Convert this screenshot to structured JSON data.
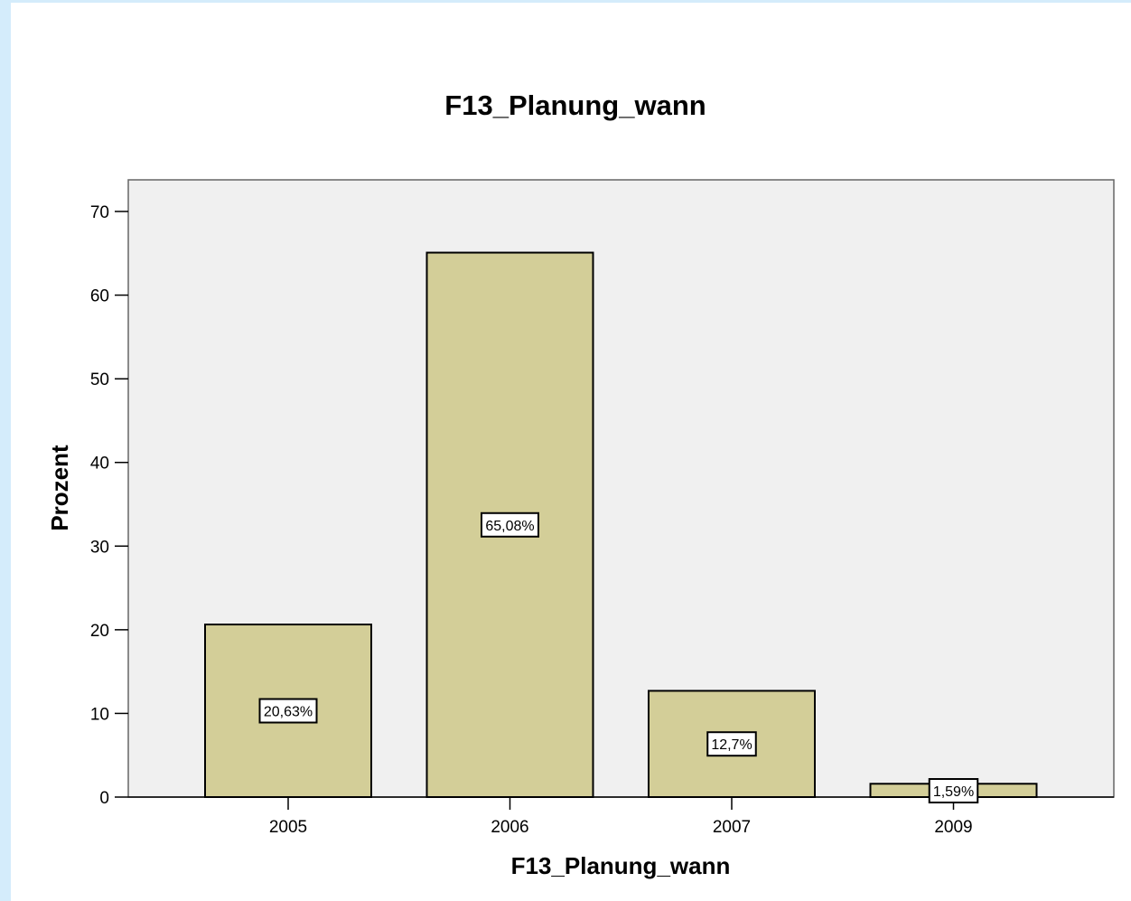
{
  "chart_data": {
    "type": "bar",
    "title": "F13_Planung_wann",
    "xlabel": "F13_Planung_wann",
    "ylabel": "Prozent",
    "categories": [
      "2005",
      "2006",
      "2007",
      "2009"
    ],
    "values": [
      20.63,
      65.08,
      12.7,
      1.59
    ],
    "data_labels": [
      "20,63%",
      "65,08%",
      "12,7%",
      "1,59%"
    ],
    "yticks": [
      0,
      10,
      20,
      30,
      40,
      50,
      60,
      70
    ],
    "ylim": [
      0,
      72
    ],
    "grid": false,
    "legend": "none",
    "colors": {
      "bar": "#d3ce98",
      "plot_background": "#f0f0f0",
      "page_background": "#d4ecfb"
    }
  }
}
